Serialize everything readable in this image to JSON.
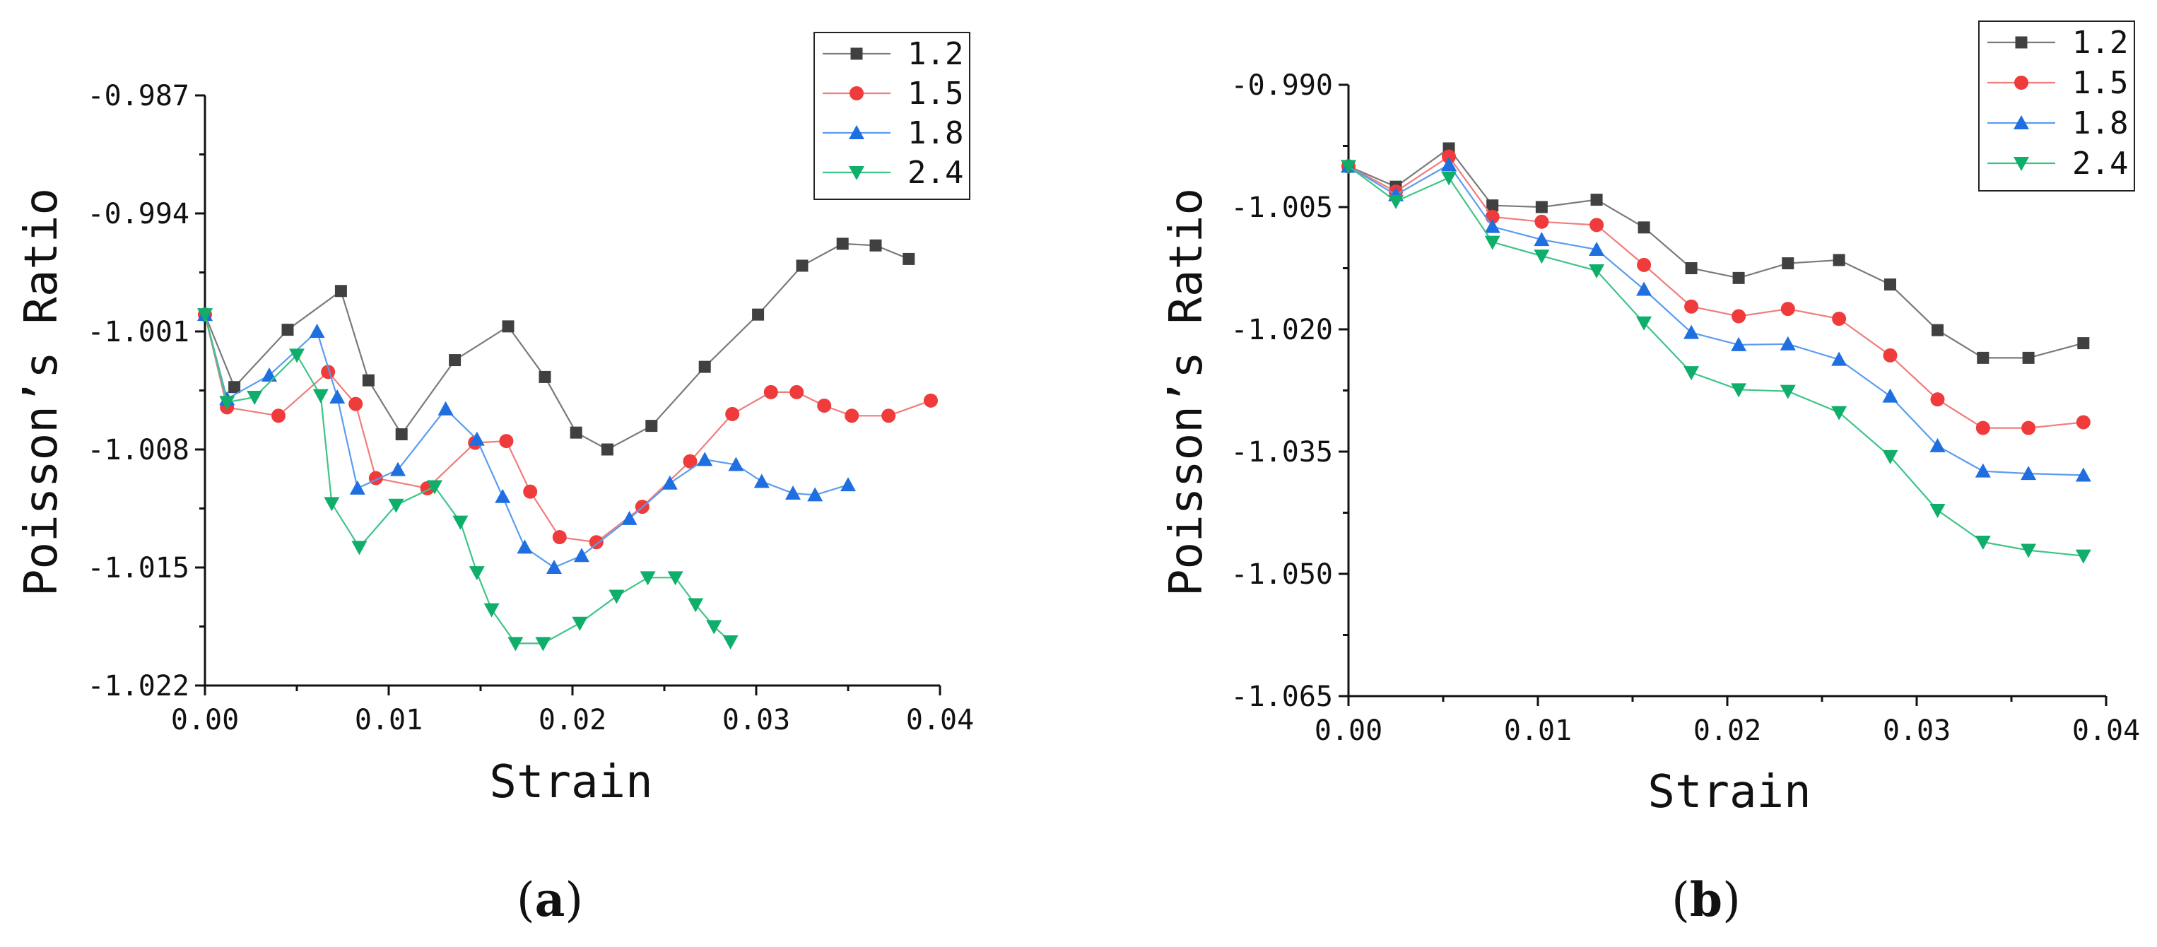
{
  "colors": {
    "s12": "#404040",
    "s15": "#ef3b3b",
    "s18": "#1f6fe0",
    "s24": "#0fae6a",
    "s12_line": "#7a7a7a",
    "s15_line": "#f07c7c",
    "s18_line": "#5a9cf0",
    "s24_line": "#3fc487"
  },
  "chart_data": [
    {
      "type": "line",
      "panel_label": "(a)",
      "panel_letter": "a",
      "xlabel": "Strain",
      "ylabel": "Poisson’s Ratio",
      "xlim": [
        0,
        0.04
      ],
      "ylim": [
        -1.022,
        -0.987
      ],
      "x_ticks": [
        "0.00",
        "0.01",
        "0.02",
        "0.03",
        "0.04"
      ],
      "y_ticks": [
        "-0.987",
        "-0.994",
        "-1.001",
        "-1.008",
        "-1.015",
        "-1.022"
      ],
      "legend_position": "top-right",
      "series": [
        {
          "name": "1.2",
          "color_key": "s12",
          "line_key": "s12_line",
          "marker": "square",
          "x": [
            0,
            0.0016,
            0.0045,
            0.0074,
            0.0089,
            0.0107,
            0.0136,
            0.0165,
            0.0185,
            0.0202,
            0.0219,
            0.0243,
            0.0272,
            0.0301,
            0.0325,
            0.0347,
            0.0365,
            0.0383
          ],
          "y": [
            -1.0,
            -1.0043,
            -1.0009,
            -0.9986,
            -1.0039,
            -1.0071,
            -1.0027,
            -1.0007,
            -1.0037,
            -1.007,
            -1.008,
            -1.0066,
            -1.0031,
            -1.0,
            -0.9971,
            -0.9958,
            -0.9959,
            -0.9967
          ]
        },
        {
          "name": "1.5",
          "color_key": "s15",
          "line_key": "s15_line",
          "marker": "circle",
          "x": [
            0,
            0.0012,
            0.004,
            0.0067,
            0.0082,
            0.0093,
            0.0121,
            0.0147,
            0.0164,
            0.0177,
            0.0193,
            0.0213,
            0.0238,
            0.0264,
            0.0287,
            0.0308,
            0.0322,
            0.0337,
            0.0352,
            0.0372,
            0.0395
          ],
          "y": [
            -1.0,
            -1.0055,
            -1.006,
            -1.0034,
            -1.0053,
            -1.0097,
            -1.0103,
            -1.0076,
            -1.0075,
            -1.0105,
            -1.0132,
            -1.0135,
            -1.0114,
            -1.0087,
            -1.0059,
            -1.0046,
            -1.0046,
            -1.0054,
            -1.006,
            -1.006,
            -1.0051
          ]
        },
        {
          "name": "1.8",
          "color_key": "s18",
          "line_key": "s18_line",
          "marker": "triangle-up",
          "x": [
            0,
            0.0012,
            0.0035,
            0.0061,
            0.0072,
            0.0083,
            0.0105,
            0.0131,
            0.0148,
            0.0162,
            0.0174,
            0.019,
            0.0205,
            0.0231,
            0.0253,
            0.0272,
            0.0289,
            0.0303,
            0.032,
            0.0332,
            0.035
          ],
          "y": [
            -1.0,
            -1.005,
            -1.0036,
            -1.001,
            -1.0049,
            -1.0103,
            -1.0092,
            -1.0056,
            -1.0074,
            -1.0108,
            -1.0138,
            -1.015,
            -1.0143,
            -1.0121,
            -1.01,
            -1.0086,
            -1.0089,
            -1.0099,
            -1.0106,
            -1.0107,
            -1.0101
          ]
        },
        {
          "name": "2.4",
          "color_key": "s24",
          "line_key": "s24_line",
          "marker": "triangle-down",
          "x": [
            0,
            0.0012,
            0.0027,
            0.005,
            0.0063,
            0.0069,
            0.0084,
            0.0104,
            0.0125,
            0.0139,
            0.0148,
            0.0156,
            0.0169,
            0.0184,
            0.0204,
            0.0224,
            0.0241,
            0.0256,
            0.0267,
            0.0277,
            0.0286
          ],
          "y": [
            -1.0,
            -1.0052,
            -1.0049,
            -1.0024,
            -1.0048,
            -1.0112,
            -1.0138,
            -1.0113,
            -1.0102,
            -1.0123,
            -1.0153,
            -1.0175,
            -1.0195,
            -1.0195,
            -1.0183,
            -1.0167,
            -1.0156,
            -1.0156,
            -1.0172,
            -1.0185,
            -1.0194
          ]
        }
      ]
    },
    {
      "type": "line",
      "panel_label": "(b)",
      "panel_letter": "b",
      "xlabel": "Strain",
      "ylabel": "Poisson’s Ratio",
      "xlim": [
        0,
        0.04
      ],
      "ylim": [
        -1.065,
        -0.99
      ],
      "x_ticks": [
        "0.00",
        "0.01",
        "0.02",
        "0.03",
        "0.04"
      ],
      "y_ticks": [
        "-0.990",
        "-1.005",
        "-1.020",
        "-1.035",
        "-1.050",
        "-1.065"
      ],
      "legend_position": "top-right",
      "series": [
        {
          "name": "1.2",
          "color_key": "s12",
          "line_key": "s12_line",
          "marker": "square",
          "x": [
            0,
            0.0025,
            0.0053,
            0.0076,
            0.0102,
            0.0131,
            0.0156,
            0.0181,
            0.0206,
            0.0232,
            0.0259,
            0.0286,
            0.0311,
            0.0335,
            0.0359,
            0.0388
          ],
          "y": [
            -1.0,
            -1.0025,
            -0.9978,
            -1.0048,
            -1.005,
            -1.0041,
            -1.0075,
            -1.0125,
            -1.0137,
            -1.0119,
            -1.0115,
            -1.0145,
            -1.0201,
            -1.0235,
            -1.0235,
            -1.0217
          ]
        },
        {
          "name": "1.5",
          "color_key": "s15",
          "line_key": "s15_line",
          "marker": "circle",
          "x": [
            0,
            0.0025,
            0.0053,
            0.0076,
            0.0102,
            0.0131,
            0.0156,
            0.0181,
            0.0206,
            0.0232,
            0.0259,
            0.0286,
            0.0311,
            0.0335,
            0.0359,
            0.0388
          ],
          "y": [
            -1.0,
            -1.0031,
            -0.9988,
            -1.0062,
            -1.0068,
            -1.0072,
            -1.0121,
            -1.0172,
            -1.0184,
            -1.0175,
            -1.0187,
            -1.0232,
            -1.0286,
            -1.0321,
            -1.0321,
            -1.0314
          ]
        },
        {
          "name": "1.8",
          "color_key": "s18",
          "line_key": "s18_line",
          "marker": "triangle-up",
          "x": [
            0,
            0.0025,
            0.0053,
            0.0076,
            0.0102,
            0.0131,
            0.0156,
            0.0181,
            0.0206,
            0.0232,
            0.0259,
            0.0286,
            0.0311,
            0.0335,
            0.0359,
            0.0388
          ],
          "y": [
            -1.0,
            -1.0035,
            -0.9998,
            -1.0074,
            -1.009,
            -1.0102,
            -1.0151,
            -1.0204,
            -1.0219,
            -1.0218,
            -1.0237,
            -1.0282,
            -1.0343,
            -1.0374,
            -1.0377,
            -1.0379
          ]
        },
        {
          "name": "2.4",
          "color_key": "s24",
          "line_key": "s24_line",
          "marker": "triangle-down",
          "x": [
            0,
            0.0025,
            0.0053,
            0.0076,
            0.0102,
            0.0131,
            0.0156,
            0.0181,
            0.0206,
            0.0232,
            0.0259,
            0.0286,
            0.0311,
            0.0335,
            0.0359,
            0.0388
          ],
          "y": [
            -1.0,
            -1.0043,
            -1.0014,
            -1.0093,
            -1.011,
            -1.0128,
            -1.0192,
            -1.0253,
            -1.0274,
            -1.0276,
            -1.0302,
            -1.0356,
            -1.0422,
            -1.0461,
            -1.0471,
            -1.0478
          ]
        }
      ]
    }
  ]
}
